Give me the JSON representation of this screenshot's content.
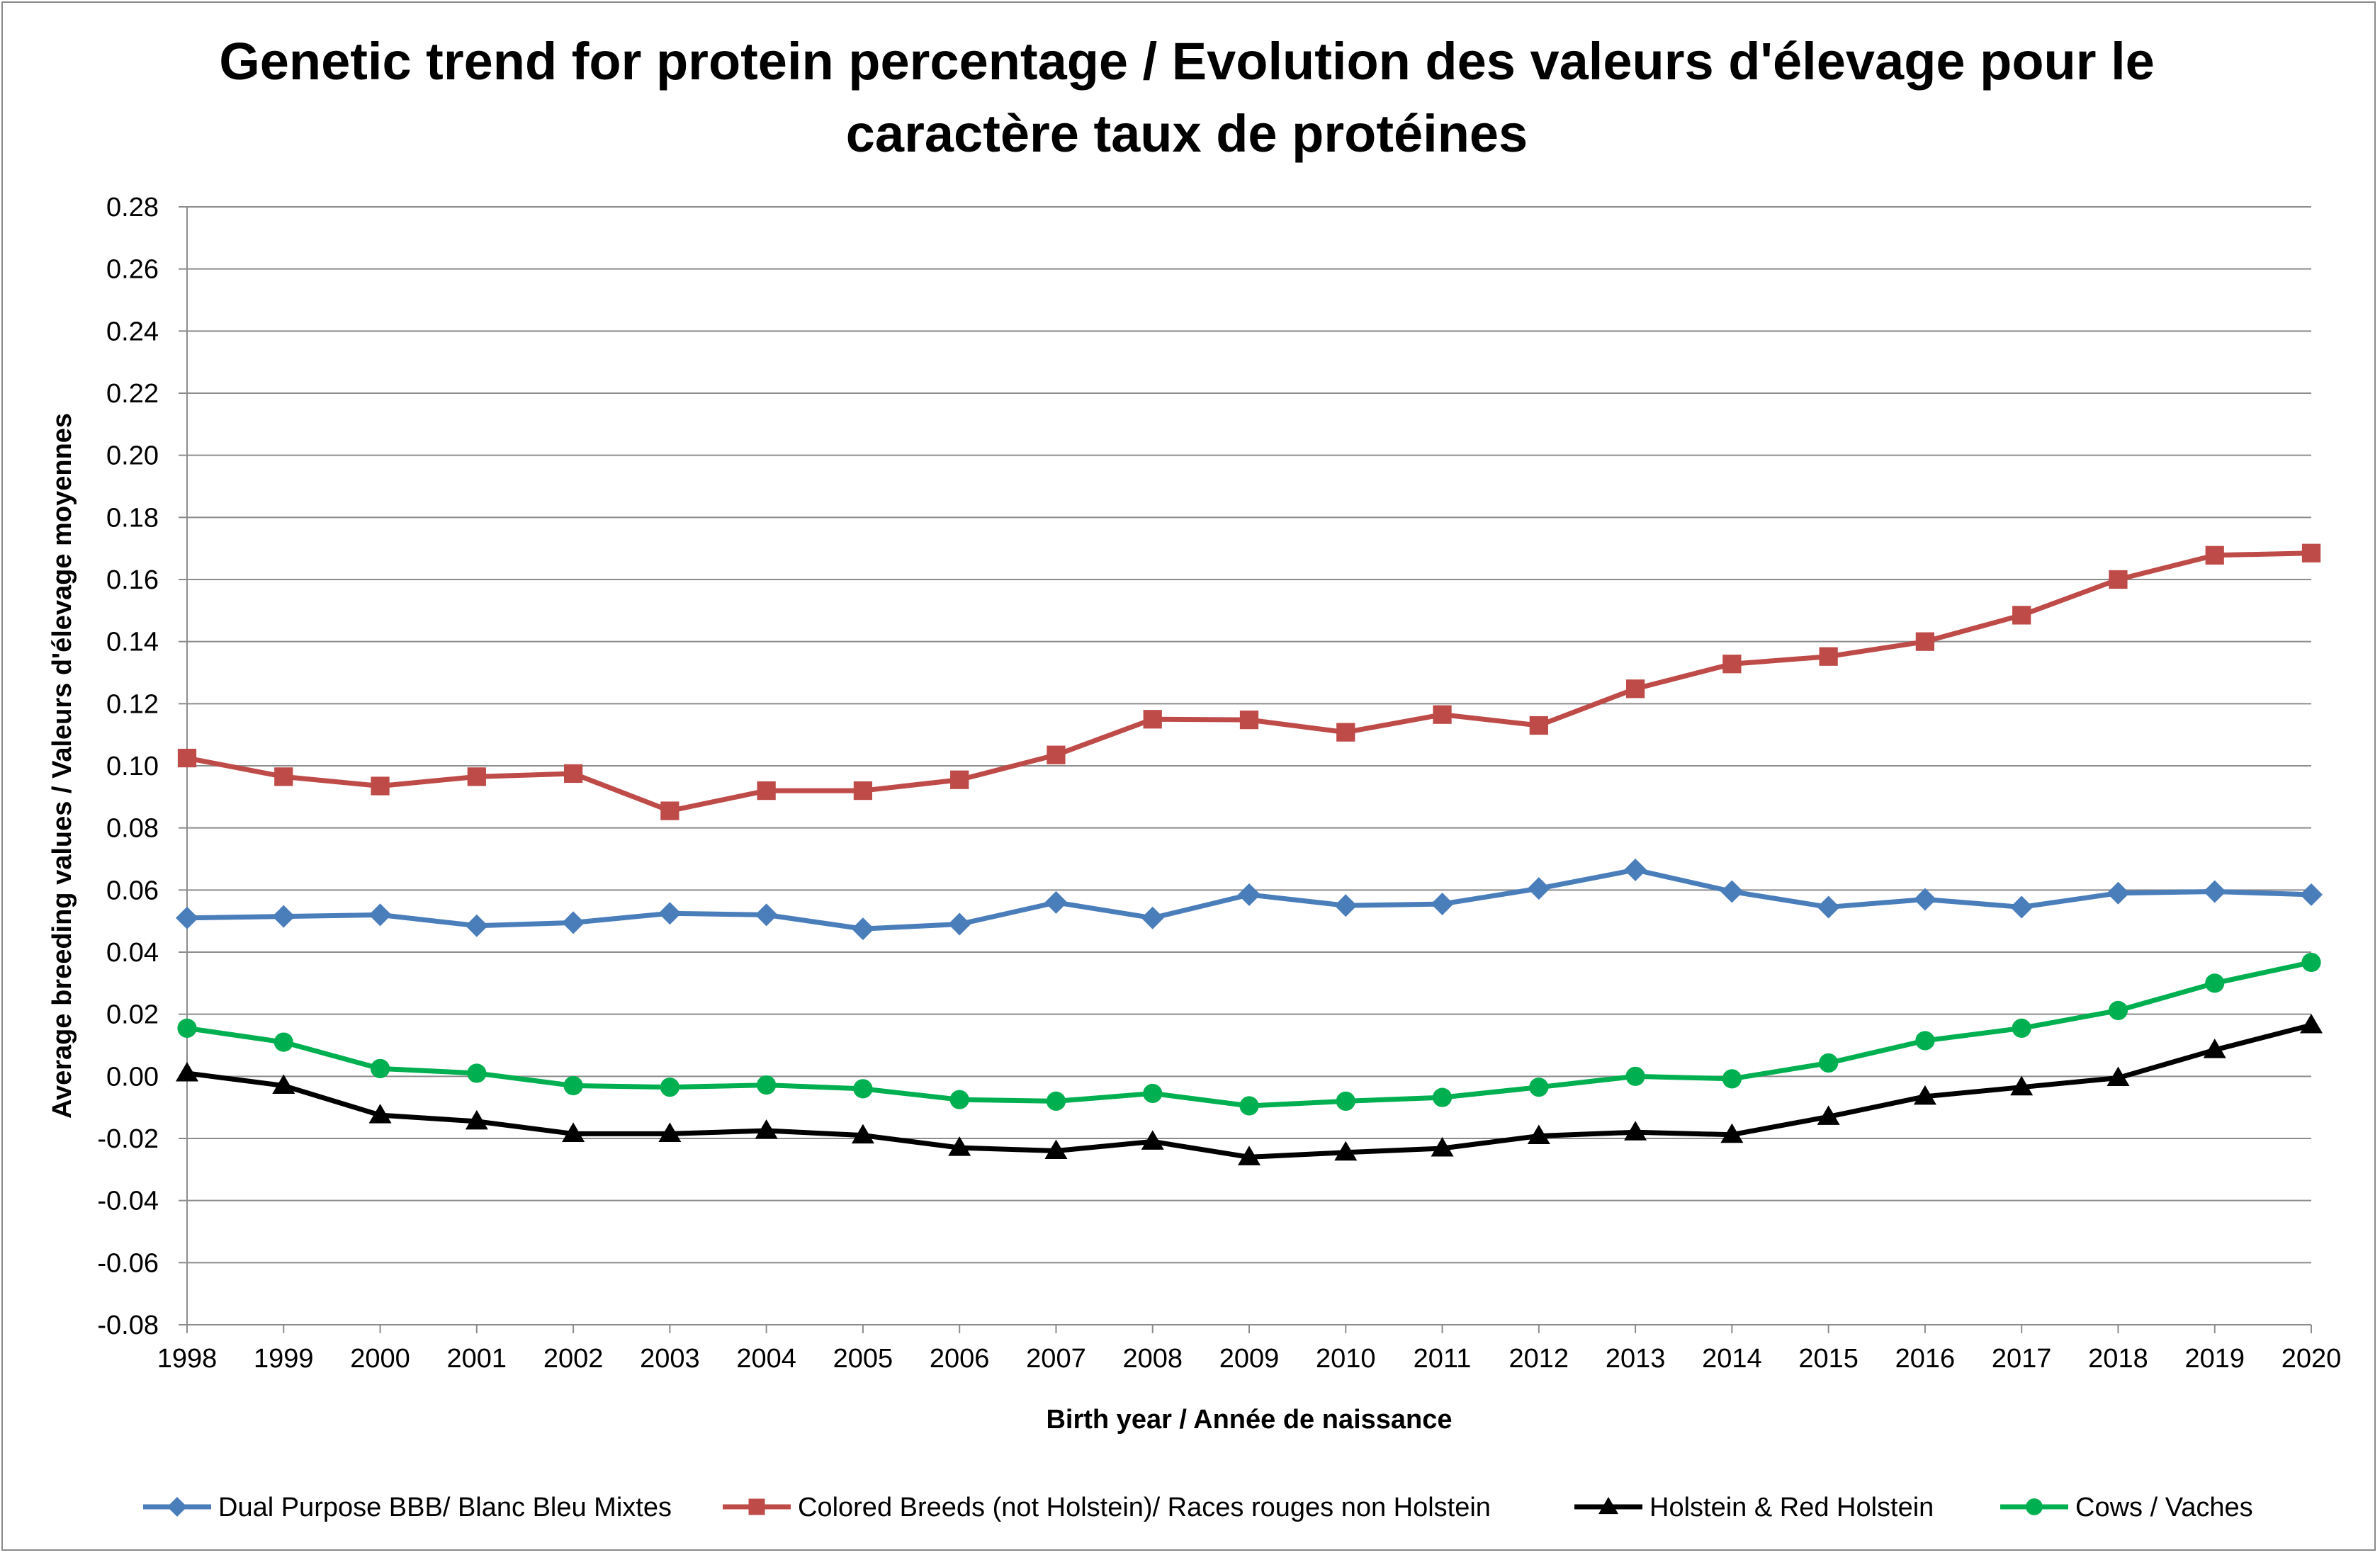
{
  "chart_data": {
    "type": "line",
    "title": "Genetic trend for protein percentage / Evolution des valeurs d'élevage pour le caractère taux de protéines",
    "xlabel": "Birth year / Année de naissance",
    "ylabel": "Average breeding values / Valeurs d'élevage moyennes",
    "ylim": [
      -0.08,
      0.28
    ],
    "ytick_step": 0.02,
    "grid": true,
    "legend_position": "bottom",
    "x": [
      "1998",
      "1999",
      "2000",
      "2001",
      "2002",
      "2003",
      "2004",
      "2005",
      "2006",
      "2007",
      "2008",
      "2009",
      "2010",
      "2011",
      "2012",
      "2013",
      "2014",
      "2015",
      "2016",
      "2017",
      "2018",
      "2019",
      "2020"
    ],
    "series": [
      {
        "name": "Dual Purpose BBB/ Blanc Bleu Mixtes",
        "color": "#4a7ebb",
        "marker": "diamond",
        "values": [
          0.051,
          0.0515,
          0.052,
          0.0485,
          0.0495,
          0.0525,
          0.052,
          0.0475,
          0.049,
          0.056,
          0.051,
          0.0585,
          0.055,
          0.0555,
          0.0605,
          0.0665,
          0.0595,
          0.0545,
          0.057,
          0.0545,
          0.059,
          0.0595,
          0.0585
        ]
      },
      {
        "name": "Colored Breeds (not Holstein)/ Races rouges non Holstein",
        "color": "#be4b48",
        "marker": "square",
        "values": [
          0.1025,
          0.0965,
          0.0935,
          0.0965,
          0.0975,
          0.0855,
          0.092,
          0.092,
          0.0955,
          0.1035,
          0.115,
          0.1148,
          0.1108,
          0.1165,
          0.113,
          0.1248,
          0.1328,
          0.1352,
          0.14,
          0.1485,
          0.16,
          0.1678,
          0.1685
        ]
      },
      {
        "name": "Holstein & Red Holstein",
        "color": "#000000",
        "marker": "triangle",
        "values": [
          0.001,
          -0.003,
          -0.0125,
          -0.0145,
          -0.0185,
          -0.0185,
          -0.0175,
          -0.019,
          -0.023,
          -0.024,
          -0.021,
          -0.026,
          -0.0245,
          -0.0232,
          -0.0192,
          -0.018,
          -0.0188,
          -0.013,
          -0.0065,
          -0.0035,
          -0.0005,
          0.0085,
          0.0165
        ]
      },
      {
        "name": "Cows / Vaches",
        "color": "#00b050",
        "marker": "circle",
        "values": [
          0.0155,
          0.011,
          0.0025,
          0.001,
          -0.003,
          -0.0035,
          -0.0028,
          -0.004,
          -0.0075,
          -0.008,
          -0.0055,
          -0.0095,
          -0.008,
          -0.0068,
          -0.0035,
          0.0,
          -0.0008,
          0.0043,
          0.0115,
          0.0155,
          0.0212,
          0.03,
          0.0367
        ]
      }
    ]
  }
}
